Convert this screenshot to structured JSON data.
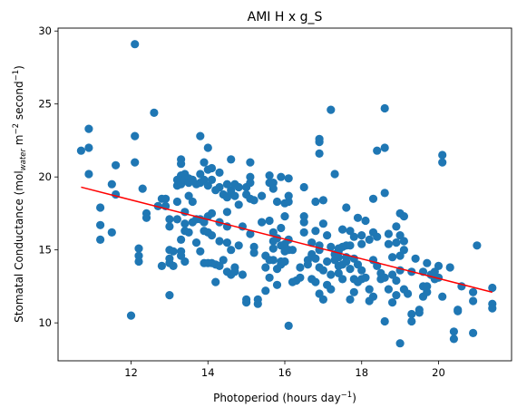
{
  "chart_data": {
    "type": "scatter",
    "title": "AMI H x g_S",
    "xlabel": {
      "main": "Photoperiod (hours day",
      "sup": "−1",
      "tail": ")"
    },
    "ylabel": {
      "p1": "Stomatal Conductance (mol",
      "sub": "water",
      "p2": " m",
      "sup1": "−2",
      "p3": " second",
      "sup2": "−1",
      "p4": ")"
    },
    "xlim": [
      10.1,
      21.9
    ],
    "ylim": [
      7.4,
      30.2
    ],
    "xticks": [
      12,
      14,
      16,
      18,
      20
    ],
    "yticks": [
      10,
      15,
      20,
      25,
      30
    ],
    "marker_color": "#1f77b4",
    "fit_color": "#ff0000",
    "fit_line": {
      "x": [
        10.7,
        21.4
      ],
      "y": [
        19.3,
        12.1
      ]
    },
    "points": [
      [
        10.7,
        21.8
      ],
      [
        10.9,
        22.0
      ],
      [
        10.9,
        23.3
      ],
      [
        10.9,
        20.2
      ],
      [
        11.2,
        17.9
      ],
      [
        11.2,
        16.7
      ],
      [
        11.2,
        15.7
      ],
      [
        11.5,
        19.5
      ],
      [
        11.5,
        16.2
      ],
      [
        11.6,
        20.8
      ],
      [
        11.6,
        18.8
      ],
      [
        12.0,
        10.5
      ],
      [
        12.1,
        29.1
      ],
      [
        12.1,
        22.8
      ],
      [
        12.1,
        21.0
      ],
      [
        12.2,
        15.1
      ],
      [
        12.2,
        14.6
      ],
      [
        12.2,
        14.2
      ],
      [
        12.3,
        19.2
      ],
      [
        12.4,
        17.5
      ],
      [
        12.4,
        17.2
      ],
      [
        12.6,
        24.4
      ],
      [
        12.7,
        18.0
      ],
      [
        12.8,
        18.5
      ],
      [
        12.8,
        13.9
      ],
      [
        12.9,
        18.5
      ],
      [
        12.9,
        18.0
      ],
      [
        13.0,
        11.9
      ],
      [
        13.0,
        17.1
      ],
      [
        13.0,
        16.6
      ],
      [
        13.0,
        15.0
      ],
      [
        13.0,
        14.4
      ],
      [
        13.0,
        14.1
      ],
      [
        13.1,
        14.9
      ],
      [
        13.1,
        13.9
      ],
      [
        13.2,
        19.8
      ],
      [
        13.2,
        19.4
      ],
      [
        13.2,
        18.3
      ],
      [
        13.2,
        17.1
      ],
      [
        13.3,
        21.2
      ],
      [
        13.3,
        20.9
      ],
      [
        13.3,
        20.1
      ],
      [
        13.3,
        19.8
      ],
      [
        13.3,
        19.5
      ],
      [
        13.3,
        15.7
      ],
      [
        13.3,
        14.9
      ],
      [
        13.3,
        14.6
      ],
      [
        13.4,
        20.2
      ],
      [
        13.4,
        19.8
      ],
      [
        13.4,
        17.6
      ],
      [
        13.4,
        16.8
      ],
      [
        13.4,
        16.3
      ],
      [
        13.4,
        14.2
      ],
      [
        13.5,
        19.9
      ],
      [
        13.5,
        19.6
      ],
      [
        13.5,
        18.7
      ],
      [
        13.5,
        16.2
      ],
      [
        13.6,
        19.8
      ],
      [
        13.6,
        18.3
      ],
      [
        13.6,
        16.9
      ],
      [
        13.7,
        19.5
      ],
      [
        13.7,
        17.1
      ],
      [
        13.7,
        15.5
      ],
      [
        13.8,
        22.8
      ],
      [
        13.8,
        20.2
      ],
      [
        13.8,
        19.6
      ],
      [
        13.8,
        17.1
      ],
      [
        13.8,
        14.9
      ],
      [
        13.9,
        21.0
      ],
      [
        13.9,
        19.8
      ],
      [
        13.9,
        16.9
      ],
      [
        13.9,
        16.3
      ],
      [
        13.9,
        14.1
      ],
      [
        14.0,
        22.0
      ],
      [
        14.0,
        20.5
      ],
      [
        14.0,
        19.4
      ],
      [
        14.0,
        17.3
      ],
      [
        14.0,
        16.2
      ],
      [
        14.0,
        14.1
      ],
      [
        14.1,
        20.6
      ],
      [
        14.1,
        19.8
      ],
      [
        14.1,
        17.5
      ],
      [
        14.1,
        16.0
      ],
      [
        14.1,
        14.1
      ],
      [
        14.2,
        19.1
      ],
      [
        14.2,
        14.0
      ],
      [
        14.2,
        12.8
      ],
      [
        14.3,
        20.3
      ],
      [
        14.3,
        19.3
      ],
      [
        14.3,
        16.9
      ],
      [
        14.3,
        15.6
      ],
      [
        14.3,
        13.9
      ],
      [
        14.4,
        18.8
      ],
      [
        14.4,
        14.3
      ],
      [
        14.5,
        19.5
      ],
      [
        14.5,
        18.6
      ],
      [
        14.5,
        17.6
      ],
      [
        14.5,
        16.6
      ],
      [
        14.5,
        15.5
      ],
      [
        14.5,
        13.5
      ],
      [
        14.6,
        21.2
      ],
      [
        14.6,
        19.1
      ],
      [
        14.6,
        18.9
      ],
      [
        14.6,
        15.0
      ],
      [
        14.6,
        13.3
      ],
      [
        14.7,
        19.5
      ],
      [
        14.7,
        18.7
      ],
      [
        14.7,
        13.8
      ],
      [
        14.7,
        13.5
      ],
      [
        14.8,
        19.3
      ],
      [
        14.8,
        18.1
      ],
      [
        14.8,
        15.3
      ],
      [
        14.9,
        16.6
      ],
      [
        14.9,
        13.3
      ],
      [
        15.0,
        19.3
      ],
      [
        15.0,
        18.8
      ],
      [
        15.0,
        11.6
      ],
      [
        15.0,
        11.4
      ],
      [
        15.1,
        21.0
      ],
      [
        15.1,
        20.0
      ],
      [
        15.1,
        19.6
      ],
      [
        15.1,
        18.5
      ],
      [
        15.1,
        16.1
      ],
      [
        15.2,
        18.4
      ],
      [
        15.2,
        15.2
      ],
      [
        15.2,
        14.8
      ],
      [
        15.3,
        11.6
      ],
      [
        15.3,
        11.3
      ],
      [
        15.4,
        18.7
      ],
      [
        15.4,
        16.9
      ],
      [
        15.5,
        14.6
      ],
      [
        15.5,
        13.8
      ],
      [
        15.5,
        12.2
      ],
      [
        15.6,
        20.1
      ],
      [
        15.6,
        19.6
      ],
      [
        15.6,
        17.0
      ],
      [
        15.6,
        14.3
      ],
      [
        15.6,
        13.1
      ],
      [
        15.7,
        19.6
      ],
      [
        15.7,
        19.2
      ],
      [
        15.7,
        16.2
      ],
      [
        15.7,
        15.6
      ],
      [
        15.7,
        15.1
      ],
      [
        15.7,
        14.3
      ],
      [
        15.8,
        18.3
      ],
      [
        15.8,
        15.8
      ],
      [
        15.8,
        13.7
      ],
      [
        15.8,
        12.6
      ],
      [
        15.9,
        20.0
      ],
      [
        15.9,
        16.5
      ],
      [
        15.9,
        15.3
      ],
      [
        15.9,
        14.2
      ],
      [
        15.9,
        14.0
      ],
      [
        16.0,
        18.2
      ],
      [
        16.0,
        17.3
      ],
      [
        16.0,
        15.4
      ],
      [
        16.0,
        14.9
      ],
      [
        16.0,
        14.2
      ],
      [
        16.1,
        19.9
      ],
      [
        16.1,
        18.3
      ],
      [
        16.1,
        18.7
      ],
      [
        16.1,
        15.7
      ],
      [
        16.1,
        15.0
      ],
      [
        16.1,
        9.8
      ],
      [
        16.2,
        15.0
      ],
      [
        16.2,
        12.8
      ],
      [
        16.3,
        12.9
      ],
      [
        16.4,
        13.1
      ],
      [
        16.4,
        13.8
      ],
      [
        16.5,
        16.2
      ],
      [
        16.5,
        16.9
      ],
      [
        16.5,
        17.3
      ],
      [
        16.5,
        19.3
      ],
      [
        16.6,
        14.3
      ],
      [
        16.6,
        14.0
      ],
      [
        16.7,
        14.7
      ],
      [
        16.7,
        15.5
      ],
      [
        16.7,
        13.0
      ],
      [
        16.8,
        12.8
      ],
      [
        16.8,
        14.4
      ],
      [
        16.8,
        18.3
      ],
      [
        16.8,
        16.3
      ],
      [
        16.9,
        12.0
      ],
      [
        16.9,
        13.8
      ],
      [
        16.9,
        15.0
      ],
      [
        16.9,
        21.6
      ],
      [
        16.9,
        22.4
      ],
      [
        16.9,
        22.6
      ],
      [
        16.9,
        15.3
      ],
      [
        17.0,
        18.4
      ],
      [
        17.0,
        11.6
      ],
      [
        17.0,
        13.6
      ],
      [
        17.0,
        16.8
      ],
      [
        17.1,
        12.6
      ],
      [
        17.1,
        16.0
      ],
      [
        17.1,
        14.2
      ],
      [
        17.2,
        24.6
      ],
      [
        17.2,
        13.3
      ],
      [
        17.2,
        12.3
      ],
      [
        17.2,
        15.2
      ],
      [
        17.3,
        20.2
      ],
      [
        17.3,
        14.7
      ],
      [
        17.3,
        14.3
      ],
      [
        17.4,
        14.9
      ],
      [
        17.4,
        15.1
      ],
      [
        17.4,
        14.5
      ],
      [
        17.4,
        13.9
      ],
      [
        17.4,
        13.4
      ],
      [
        17.5,
        15.2
      ],
      [
        17.5,
        14.0
      ],
      [
        17.5,
        16.4
      ],
      [
        17.5,
        13.0
      ],
      [
        17.6,
        17.9
      ],
      [
        17.6,
        14.5
      ],
      [
        17.6,
        15.3
      ],
      [
        17.6,
        14.2
      ],
      [
        17.7,
        15.3
      ],
      [
        17.7,
        16.3
      ],
      [
        17.7,
        13.7
      ],
      [
        17.7,
        11.6
      ],
      [
        17.8,
        15.9
      ],
      [
        17.8,
        14.4
      ],
      [
        17.8,
        13.0
      ],
      [
        17.8,
        12.1
      ],
      [
        17.9,
        17.2
      ],
      [
        17.9,
        14.0
      ],
      [
        17.9,
        12.8
      ],
      [
        18.0,
        16.0
      ],
      [
        18.0,
        13.6
      ],
      [
        18.0,
        15.4
      ],
      [
        18.0,
        13.0
      ],
      [
        18.1,
        17.0
      ],
      [
        18.1,
        13.1
      ],
      [
        18.2,
        15.7
      ],
      [
        18.2,
        12.3
      ],
      [
        18.2,
        11.5
      ],
      [
        18.3,
        18.5
      ],
      [
        18.3,
        14.3
      ],
      [
        18.3,
        11.8
      ],
      [
        18.3,
        16.2
      ],
      [
        18.4,
        21.8
      ],
      [
        18.4,
        15.9
      ],
      [
        18.4,
        13.9
      ],
      [
        18.5,
        13.0
      ],
      [
        18.5,
        13.4
      ],
      [
        18.6,
        24.7
      ],
      [
        18.6,
        22.0
      ],
      [
        18.6,
        18.9
      ],
      [
        18.6,
        13.1
      ],
      [
        18.6,
        10.1
      ],
      [
        18.7,
        16.1
      ],
      [
        18.7,
        15.4
      ],
      [
        18.7,
        12.3
      ],
      [
        18.8,
        14.5
      ],
      [
        18.8,
        13.3
      ],
      [
        18.8,
        11.4
      ],
      [
        18.9,
        16.6
      ],
      [
        18.9,
        15.5
      ],
      [
        18.9,
        12.9
      ],
      [
        18.9,
        11.9
      ],
      [
        19.0,
        17.5
      ],
      [
        19.0,
        16.0
      ],
      [
        19.0,
        14.6
      ],
      [
        19.0,
        13.6
      ],
      [
        19.0,
        8.6
      ],
      [
        19.1,
        17.3
      ],
      [
        19.1,
        15.6
      ],
      [
        19.1,
        15.0
      ],
      [
        19.1,
        12.3
      ],
      [
        19.2,
        12.0
      ],
      [
        19.3,
        10.6
      ],
      [
        19.3,
        13.5
      ],
      [
        19.3,
        10.1
      ],
      [
        19.4,
        14.4
      ],
      [
        19.5,
        10.9
      ],
      [
        19.5,
        10.7
      ],
      [
        19.6,
        13.5
      ],
      [
        19.6,
        12.5
      ],
      [
        19.6,
        11.8
      ],
      [
        19.7,
        12.5
      ],
      [
        19.7,
        12.1
      ],
      [
        19.7,
        14.1
      ],
      [
        19.8,
        13.3
      ],
      [
        19.9,
        13.5
      ],
      [
        19.9,
        13.0
      ],
      [
        20.0,
        13.9
      ],
      [
        20.0,
        13.1
      ],
      [
        20.1,
        21.5
      ],
      [
        20.1,
        21.0
      ],
      [
        20.1,
        11.8
      ],
      [
        20.3,
        13.8
      ],
      [
        20.4,
        9.4
      ],
      [
        20.4,
        8.9
      ],
      [
        20.5,
        10.9
      ],
      [
        20.5,
        10.8
      ],
      [
        20.6,
        12.5
      ],
      [
        20.9,
        12.1
      ],
      [
        20.9,
        11.5
      ],
      [
        20.9,
        9.3
      ],
      [
        21.0,
        15.3
      ],
      [
        21.4,
        12.4
      ],
      [
        21.4,
        11.3
      ],
      [
        21.4,
        11.0
      ]
    ]
  }
}
